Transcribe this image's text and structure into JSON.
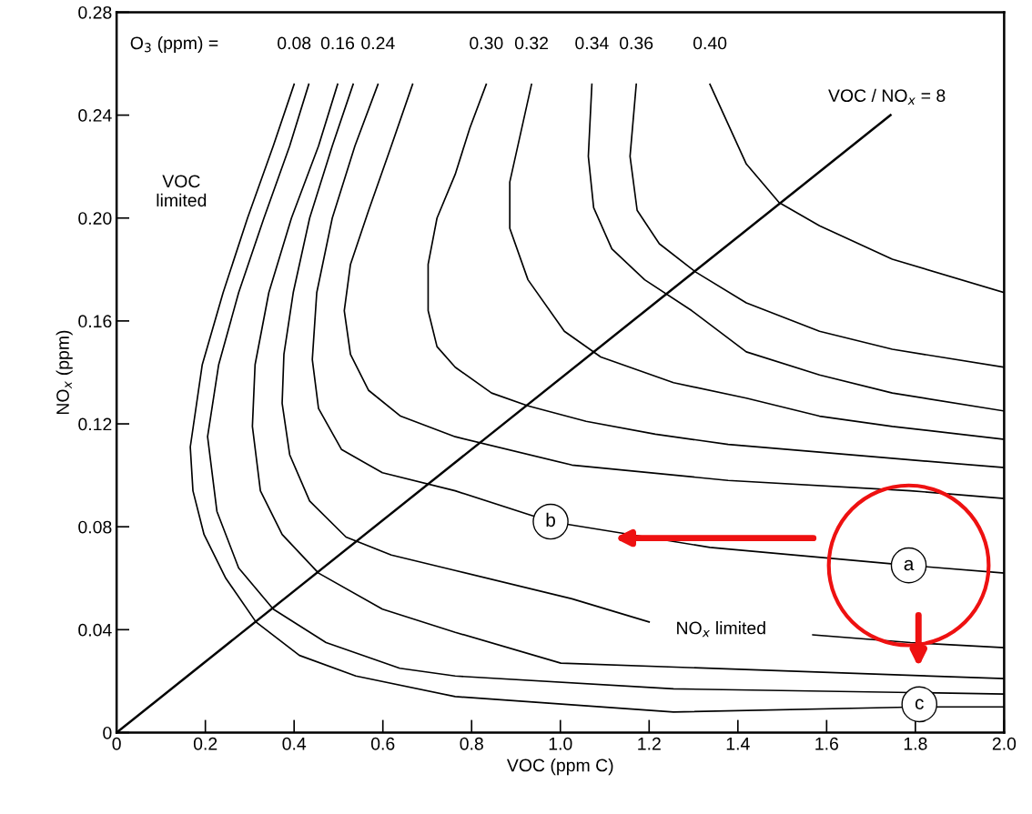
{
  "chart_data": {
    "type": "line",
    "xlabel": "VOC (ppm C)",
    "ylabel": "NO$_{x}$ (ppm)",
    "xlim": [
      0,
      2.0
    ],
    "ylim": [
      0,
      0.28
    ],
    "xticks": [
      0,
      0.2,
      0.4,
      0.6,
      0.8,
      {
        "value": 1.0,
        "label": "1.0"
      },
      1.2,
      1.4,
      1.6,
      1.8,
      {
        "value": 2.0,
        "label": "2.0"
      }
    ],
    "yticks": [
      0,
      0.04,
      0.08,
      0.12,
      0.16,
      {
        "value": 0.2,
        "label": "0.20"
      },
      0.24,
      0.28
    ],
    "grid": false,
    "legend": false,
    "marker": "none",
    "line_style": "solid",
    "series": [
      {
        "name": "0.08",
        "color": "#000000",
        "x": [
          0.4,
          0.353,
          0.295,
          0.24,
          0.193,
          0.166,
          0.172,
          0.197,
          0.246,
          0.314,
          0.412,
          0.539,
          0.763,
          1.255,
          1.809,
          2.0
        ],
        "values": [
          0.252,
          0.228,
          0.2,
          0.171,
          0.143,
          0.111,
          0.094,
          0.077,
          0.06,
          0.043,
          0.03,
          0.022,
          0.014,
          0.008,
          0.01,
          0.01
        ]
      },
      {
        "color": "#000000",
        "x": [
          0.433,
          0.39,
          0.332,
          0.275,
          0.23,
          0.205,
          0.226,
          0.275,
          0.353,
          0.472,
          0.638,
          0.763,
          1.255,
          2.0
        ],
        "values": [
          0.252,
          0.228,
          0.2,
          0.171,
          0.143,
          0.115,
          0.086,
          0.064,
          0.048,
          0.035,
          0.025,
          0.022,
          0.017,
          0.015
        ]
      },
      {
        "name": "0.16",
        "color": "#000000",
        "x": [
          0.498,
          0.455,
          0.394,
          0.343,
          0.312,
          0.306,
          0.324,
          0.373,
          0.455,
          0.599,
          0.763,
          1.001,
          2.0
        ],
        "values": [
          0.252,
          0.228,
          0.2,
          0.171,
          0.143,
          0.119,
          0.094,
          0.077,
          0.062,
          0.048,
          0.039,
          0.027,
          0.021
        ]
      },
      {
        "color": "#000000",
        "x": [
          0.533,
          0.486,
          0.435,
          0.398,
          0.377,
          0.373,
          0.39,
          0.435,
          0.517,
          0.619,
          0.763,
          1.026,
          1.2,
          1.385,
          1.569,
          1.789,
          2.0
        ],
        "values": [
          0.252,
          0.228,
          0.2,
          0.171,
          0.147,
          0.128,
          0.108,
          0.09,
          0.076,
          0.069,
          0.063,
          0.052,
          0.043,
          null,
          0.038,
          0.035,
          0.033
        ]
      },
      {
        "name": "0.24",
        "color": "#000000",
        "x": [
          0.589,
          0.537,
          0.486,
          0.451,
          0.441,
          0.455,
          0.507,
          0.599,
          0.763,
          0.978,
          1.337,
          1.785,
          2.0
        ],
        "values": [
          0.252,
          0.228,
          0.2,
          0.171,
          0.145,
          0.126,
          0.11,
          0.101,
          0.094,
          0.082,
          0.072,
          0.065,
          0.062
        ]
      },
      {
        "color": "#000000",
        "x": [
          0.667,
          0.619,
          0.568,
          0.527,
          0.513,
          0.527,
          0.568,
          0.64,
          0.763,
          1.026,
          1.378,
          1.789,
          2.0
        ],
        "values": [
          0.252,
          0.228,
          0.203,
          0.182,
          0.164,
          0.147,
          0.133,
          0.123,
          0.115,
          0.104,
          0.098,
          0.094,
          0.091
        ]
      },
      {
        "name": "0.30",
        "color": "#000000",
        "x": [
          0.833,
          0.796,
          0.763,
          0.722,
          0.702,
          0.702,
          0.722,
          0.763,
          0.845,
          0.927,
          1.058,
          1.214,
          1.378,
          1.584,
          1.789,
          2.0
        ],
        "values": [
          0.252,
          0.235,
          0.217,
          0.2,
          0.182,
          0.164,
          0.15,
          0.142,
          0.132,
          0.127,
          0.121,
          0.116,
          0.112,
          0.109,
          0.106,
          0.103
        ]
      },
      {
        "name": "0.32",
        "color": "#000000",
        "x": [
          0.935,
          0.886,
          0.886,
          0.927,
          1.009,
          1.091,
          1.255,
          1.419,
          1.584,
          1.748,
          2.0
        ],
        "values": [
          0.252,
          0.214,
          0.196,
          0.176,
          0.156,
          0.146,
          0.136,
          0.13,
          0.123,
          0.119,
          0.114
        ]
      },
      {
        "name": "0.34",
        "color": "#000000",
        "x": [
          1.071,
          1.063,
          1.075,
          1.116,
          1.19,
          1.296,
          1.419,
          1.584,
          1.748,
          2.0
        ],
        "values": [
          0.252,
          0.224,
          0.204,
          0.188,
          0.176,
          0.164,
          0.148,
          0.139,
          0.132,
          0.125
        ]
      },
      {
        "name": "0.36",
        "color": "#000000",
        "x": [
          1.171,
          1.157,
          1.173,
          1.223,
          1.305,
          1.419,
          1.584,
          1.748,
          2.0
        ],
        "values": [
          0.252,
          0.224,
          0.203,
          0.19,
          0.179,
          0.167,
          0.156,
          0.149,
          0.142
        ]
      },
      {
        "name": "0.40",
        "color": "#000000",
        "x": [
          1.337,
          1.419,
          1.493,
          1.584,
          1.748,
          2.0
        ],
        "values": [
          0.252,
          0.221,
          0.206,
          0.197,
          0.184,
          0.171
        ]
      },
      {
        "color": "#000000",
        "x": [
          0,
          1.744
        ],
        "values": [
          0,
          0.24
        ]
      },
      {
        "type": "scatter",
        "color": "#ee1111",
        "x": [
          1.785
        ],
        "values": [
          0.065
        ],
        "marker": "circle"
      }
    ],
    "annotations": [
      "O$_{3}$ (ppm) =",
      "VOC\nlimited",
      "VOC / NO$_{x}$ = 8",
      "NO$_{x}$ limited",
      {
        "text": "a",
        "x": 1.785,
        "y": 0.065
      },
      {
        "text": "b",
        "x": 0.978,
        "y": 0.082
      },
      {
        "text": "c",
        "x": 1.809,
        "y": 0.011
      }
    ]
  }
}
